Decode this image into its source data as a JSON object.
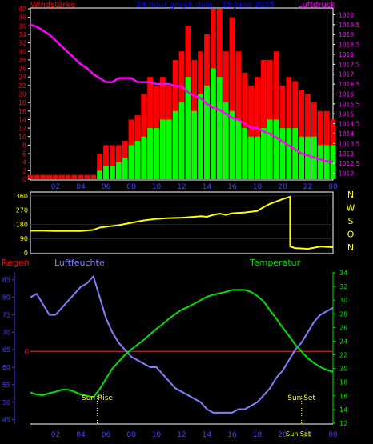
{
  "colors": {
    "background": "#000000",
    "frame": "#ffffff",
    "wind_gust": "#ff0000",
    "wind_mean": "#00ff00",
    "wind_base": "#000000",
    "pressure": "#ff00ff",
    "direction": "#ffff00",
    "temperature": "#00e000",
    "humidity": "#8080ff",
    "rain": "#ff0000",
    "title": "#0000ff",
    "hum_axis": "#4040ff",
    "sun": "#ffff00"
  },
  "chart_data": [
    {
      "type": "bar",
      "title": "24 hour graph date : 19 June 2025",
      "left_label": "Windstärke",
      "right_label": "Luftdruck",
      "x_ticks": [
        "02",
        "04",
        "06",
        "08",
        "10",
        "12",
        "14",
        "16",
        "18",
        "20",
        "22",
        "00"
      ],
      "y_left_ticks": [
        "0",
        "2",
        "4",
        "6",
        "8",
        "10",
        "12",
        "14",
        "16",
        "18",
        "20",
        "22",
        "24",
        "26",
        "28",
        "30",
        "32",
        "34",
        "36",
        "38",
        "40"
      ],
      "y_left_range": [
        0,
        40
      ],
      "y_right_ticks": [
        "1012",
        "1012.5",
        "1013",
        "1013.5",
        "1014",
        "1014.5",
        "1015",
        "1015.5",
        "1016",
        "1016.5",
        "1017",
        "1017.5",
        "1018",
        "1018.5",
        "1019",
        "1019.5",
        "1020"
      ],
      "y_right_range": [
        1011.7,
        1020.3
      ],
      "x_range_hours": [
        0,
        24
      ],
      "series": [
        {
          "kind": "bars",
          "x": [
            0,
            0.5,
            1,
            1.5,
            2,
            2.5,
            3,
            3.5,
            4,
            4.5,
            5,
            5.5,
            6,
            6.5,
            7,
            7.5,
            8,
            8.5,
            9,
            9.5,
            10,
            10.5,
            11,
            11.5,
            12,
            12.5,
            13,
            13.5,
            14,
            14.5,
            15,
            15.5,
            16,
            16.5,
            17,
            17.5,
            18,
            18.5,
            19,
            19.5,
            20,
            20.5,
            21,
            21.5,
            22,
            22.5,
            23,
            23.5,
            24
          ],
          "gust": [
            1,
            1,
            1,
            1,
            1,
            1,
            1,
            1,
            1,
            1,
            1,
            6,
            8,
            8,
            8,
            9,
            14,
            15,
            20,
            24,
            22,
            24,
            22,
            28,
            30,
            36,
            28,
            30,
            34,
            40,
            40,
            30,
            38,
            30,
            25,
            22,
            24,
            28,
            28,
            30,
            22,
            24,
            23,
            21,
            20,
            18,
            16,
            16,
            14
          ],
          "mean": [
            0,
            0,
            0,
            0,
            0,
            0,
            0,
            0,
            0,
            0,
            0,
            2,
            3,
            3,
            4,
            5,
            8,
            9,
            10,
            12,
            12,
            14,
            14,
            16,
            18,
            24,
            16,
            20,
            22,
            26,
            24,
            18,
            16,
            14,
            12,
            10,
            10,
            12,
            14,
            14,
            12,
            12,
            12,
            10,
            10,
            10,
            8,
            8,
            8
          ]
        },
        {
          "kind": "line",
          "x": [
            0,
            0.5,
            1,
            1.5,
            2,
            2.5,
            3,
            3.5,
            4,
            4.5,
            5,
            5.5,
            6,
            6.5,
            7,
            7.5,
            8,
            8.5,
            9,
            9.5,
            10,
            10.5,
            11,
            11.5,
            12,
            12.5,
            13,
            13.5,
            14,
            14.5,
            15,
            15.5,
            16,
            16.5,
            17,
            17.5,
            18,
            18.5,
            19,
            19.5,
            20,
            20.5,
            21,
            21.5,
            22,
            22.5,
            23,
            23.5,
            24
          ],
          "pressure": [
            1019.5,
            1019.4,
            1019.2,
            1019.0,
            1018.7,
            1018.4,
            1018.1,
            1017.8,
            1017.5,
            1017.3,
            1017.0,
            1016.8,
            1016.6,
            1016.6,
            1016.8,
            1016.8,
            1016.8,
            1016.6,
            1016.6,
            1016.6,
            1016.5,
            1016.5,
            1016.5,
            1016.4,
            1016.4,
            1016.1,
            1015.9,
            1015.8,
            1015.5,
            1015.3,
            1015.2,
            1015.0,
            1014.8,
            1014.7,
            1014.5,
            1014.3,
            1014.3,
            1014.1,
            1014.0,
            1013.8,
            1013.6,
            1013.4,
            1013.2,
            1013.0,
            1012.9,
            1012.8,
            1012.7,
            1012.6,
            1012.6
          ]
        }
      ]
    },
    {
      "type": "line",
      "right_labels": [
        "N",
        "W",
        "S",
        "O",
        "N"
      ],
      "y_ticks": [
        "0",
        "90",
        "180",
        "270",
        "360"
      ],
      "y_range": [
        0,
        380
      ],
      "x_range_hours": [
        0,
        24
      ],
      "series": [
        {
          "name_hidden": true,
          "x": [
            0,
            1,
            2,
            3,
            4,
            5,
            5.5,
            6,
            7,
            8,
            9,
            10,
            11,
            12,
            13,
            13.5,
            14,
            14.5,
            15,
            15.5,
            16,
            17,
            18,
            18.5,
            19,
            20,
            20.6,
            20.6,
            21,
            22,
            23,
            24
          ],
          "y": [
            140,
            140,
            138,
            138,
            138,
            145,
            160,
            165,
            175,
            190,
            205,
            215,
            220,
            222,
            228,
            232,
            228,
            240,
            248,
            240,
            250,
            255,
            265,
            290,
            310,
            340,
            355,
            40,
            30,
            25,
            40,
            35
          ]
        }
      ]
    },
    {
      "type": "line",
      "left_title": "Regen",
      "center_title": "Luftfeuchte",
      "right_title": "Temperatur",
      "y_hum_ticks": [
        "45",
        "50",
        "55",
        "60",
        "65",
        "70",
        "75",
        "80",
        "85"
      ],
      "y_hum_range": [
        44,
        87
      ],
      "y_rain_ticks": [
        "0"
      ],
      "y_temp_ticks": [
        "12",
        "14",
        "16",
        "18",
        "20",
        "22",
        "24",
        "26",
        "28",
        "30",
        "32",
        "34"
      ],
      "y_temp_range": [
        12,
        34
      ],
      "x_ticks": [
        "02",
        "04",
        "06",
        "08",
        "10",
        "12",
        "14",
        "16",
        "18",
        "20",
        "22",
        "00"
      ],
      "x_range_hours": [
        0,
        24
      ],
      "annotations": {
        "sunrise": "Sun Rise",
        "sunset": "Sun Set",
        "sunset_bottom": "Sun Set"
      },
      "sunrise_hour": 5.3,
      "sunset_hour": 21.5,
      "rain_zero_humidity_level": 64.5,
      "series": [
        {
          "name": "Luftfeuchte",
          "x": [
            0,
            0.5,
            1,
            1.5,
            2,
            2.5,
            3,
            3.5,
            4,
            4.5,
            5,
            5.5,
            6,
            6.5,
            7,
            7.5,
            8,
            8.5,
            9,
            9.5,
            10,
            10.5,
            11,
            11.5,
            12,
            12.5,
            13,
            13.5,
            14,
            14.5,
            15,
            15.5,
            16,
            16.5,
            17,
            17.5,
            18,
            18.5,
            19,
            19.5,
            20,
            20.5,
            21,
            21.5,
            22,
            22.5,
            23,
            23.5,
            24
          ],
          "humidity": [
            80,
            81,
            78,
            75,
            75,
            77,
            79,
            81,
            83,
            84,
            86,
            80,
            74,
            70,
            67,
            65,
            63,
            62,
            61,
            60,
            60,
            58,
            56,
            54,
            53,
            52,
            51,
            50,
            48,
            47,
            47,
            47,
            47,
            48,
            48,
            49,
            50,
            52,
            54,
            57,
            59,
            62,
            65,
            67,
            70,
            73,
            75,
            76,
            77
          ]
        },
        {
          "name": "Temperatur",
          "x": [
            0,
            0.5,
            1,
            1.5,
            2,
            2.5,
            3,
            3.5,
            4,
            4.5,
            5,
            5.5,
            6,
            6.5,
            7,
            7.5,
            8,
            8.5,
            9,
            9.5,
            10,
            10.5,
            11,
            11.5,
            12,
            12.5,
            13,
            13.5,
            14,
            14.5,
            15,
            15.5,
            16,
            16.5,
            17,
            17.5,
            18,
            18.5,
            19,
            19.5,
            20,
            20.5,
            21,
            21.5,
            22,
            22.5,
            23,
            23.5,
            24
          ],
          "temperature": [
            16.5,
            16.2,
            16.1,
            16.4,
            16.6,
            16.9,
            16.9,
            16.6,
            16.2,
            16.0,
            15.8,
            17.0,
            18.5,
            20.0,
            21.0,
            22.0,
            22.8,
            23.5,
            24.2,
            25.0,
            25.8,
            26.5,
            27.3,
            28.0,
            28.6,
            29.0,
            29.5,
            30.0,
            30.5,
            30.8,
            31.0,
            31.2,
            31.5,
            31.5,
            31.5,
            31.2,
            30.6,
            29.8,
            28.5,
            27.3,
            26.0,
            24.8,
            23.5,
            22.5,
            21.5,
            20.8,
            20.2,
            19.8,
            19.5
          ]
        }
      ]
    }
  ]
}
